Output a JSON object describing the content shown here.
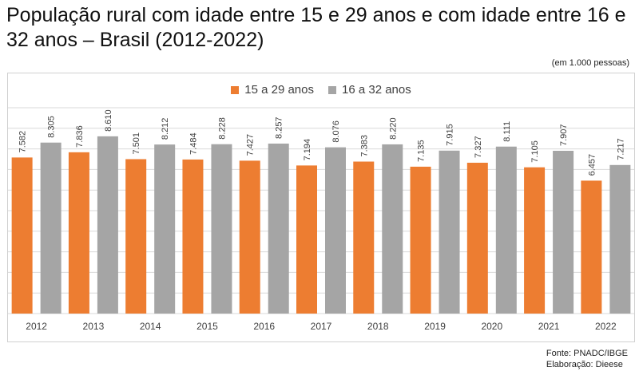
{
  "title": "População rural com idade entre 15 e 29 anos e com idade entre 16 e 32 anos – Brasil (2012-2022)",
  "unit_note": "(em 1.000 pessoas)",
  "source_line1": "Fonte: PNADC/IBGE",
  "source_line2": "Elaboração: Dieese",
  "colors": {
    "series1": "#ed7d31",
    "series2": "#a5a5a5",
    "grid": "#d9d9d9",
    "label": "#404040"
  },
  "chart_data": {
    "type": "bar",
    "categories": [
      "2012",
      "2013",
      "2014",
      "2015",
      "2016",
      "2017",
      "2018",
      "2019",
      "2020",
      "2021",
      "2022"
    ],
    "series": [
      {
        "name": "15 a 29 anos",
        "values": [
          7582,
          7836,
          7501,
          7484,
          7427,
          7194,
          7383,
          7135,
          7327,
          7105,
          6457
        ],
        "labels": [
          "7.582",
          "7.836",
          "7.501",
          "7.484",
          "7.427",
          "7.194",
          "7.383",
          "7.135",
          "7.327",
          "7.105",
          "6.457"
        ]
      },
      {
        "name": "16 a 32 anos",
        "values": [
          8305,
          8610,
          8212,
          8228,
          8257,
          8076,
          8220,
          7915,
          8111,
          7907,
          7217
        ],
        "labels": [
          "8.305",
          "8.610",
          "8.212",
          "8.228",
          "8.257",
          "8.076",
          "8.220",
          "7.915",
          "8.111",
          "7.907",
          "7.217"
        ]
      }
    ],
    "ylim": [
      0,
      10000
    ],
    "grid": true,
    "legend": "top-center"
  }
}
